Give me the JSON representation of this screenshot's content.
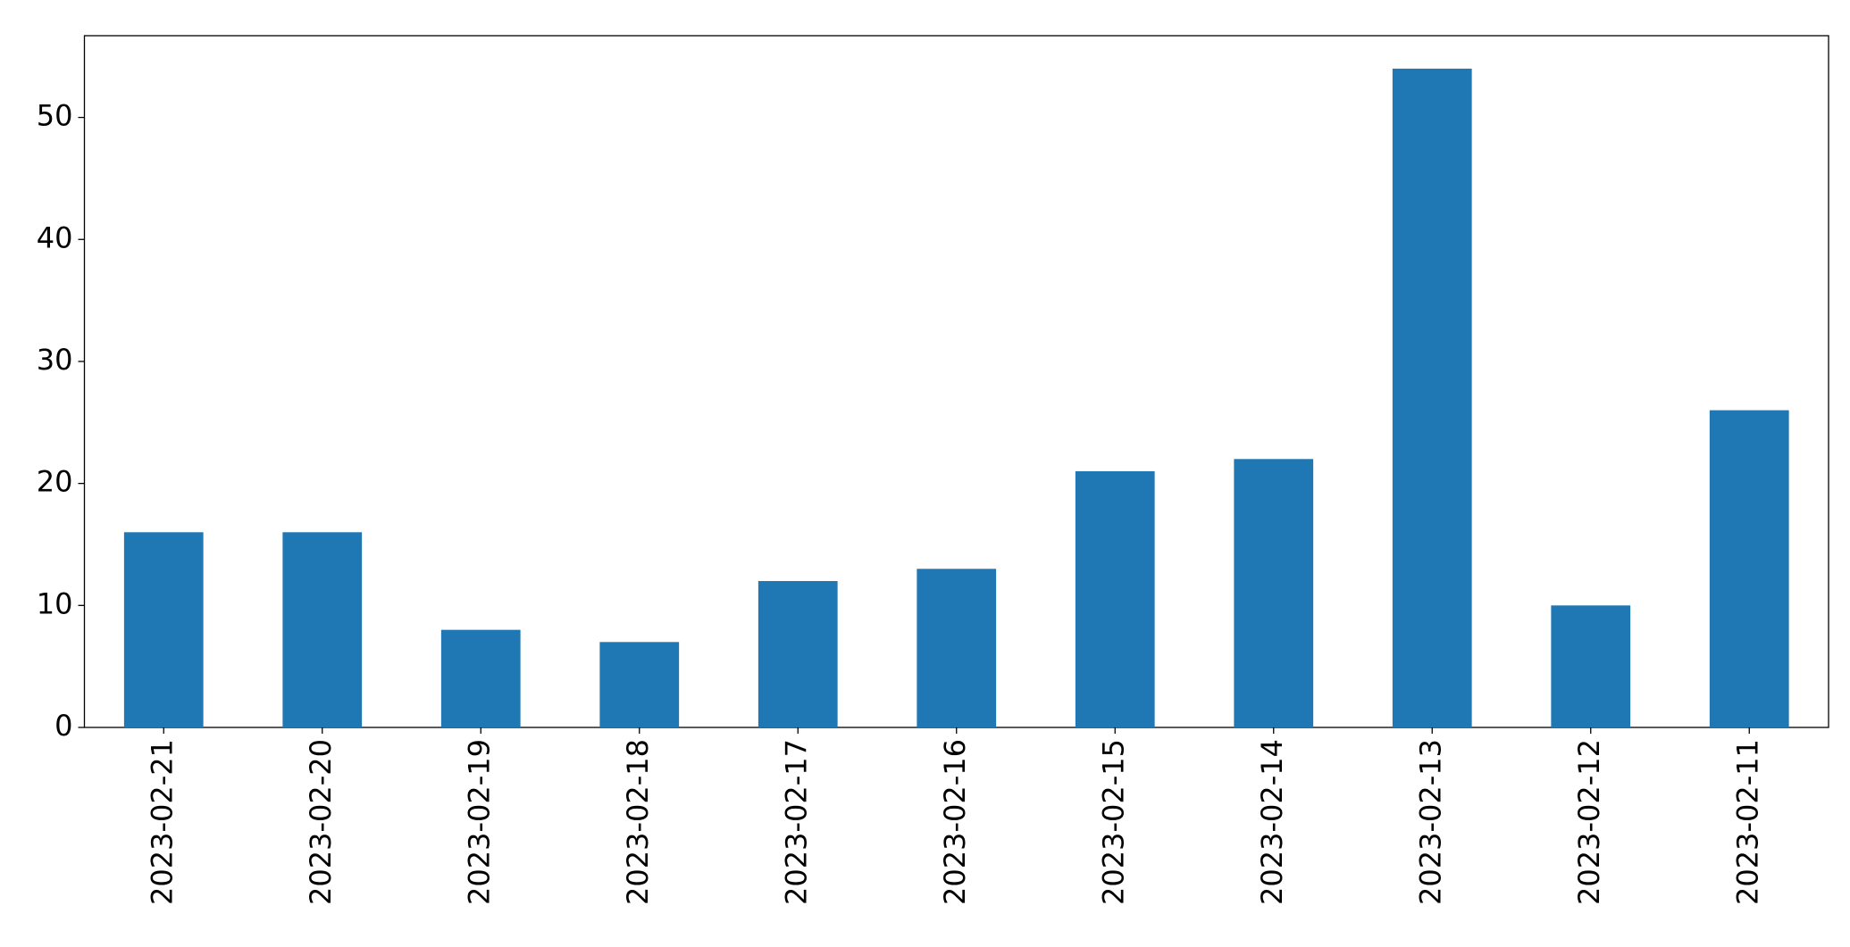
{
  "chart_data": {
    "type": "bar",
    "categories": [
      "2023-02-21",
      "2023-02-20",
      "2023-02-19",
      "2023-02-18",
      "2023-02-17",
      "2023-02-16",
      "2023-02-15",
      "2023-02-14",
      "2023-02-13",
      "2023-02-12",
      "2023-02-11"
    ],
    "values": [
      16,
      16,
      8,
      7,
      12,
      13,
      21,
      22,
      54,
      10,
      26
    ],
    "color": "#1f77b4",
    "ylim": [
      0,
      56.7
    ],
    "yticks": [
      0,
      10,
      20,
      30,
      40,
      50
    ],
    "grid": false
  }
}
